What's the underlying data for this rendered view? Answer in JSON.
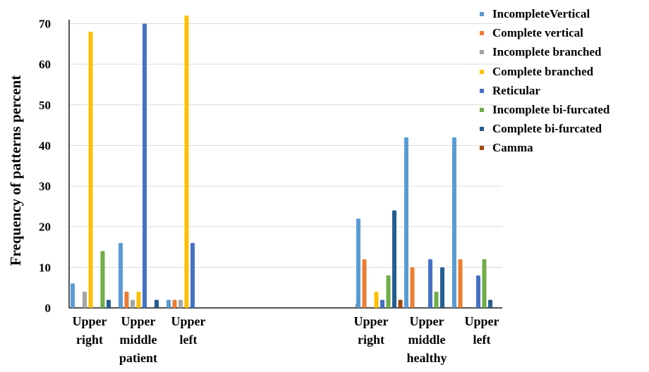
{
  "chart_data": {
    "type": "bar",
    "ylabel": "Frequency of patterns percent",
    "xlabel": "",
    "ylim": [
      0,
      72
    ],
    "yticks": [
      "0",
      "10",
      "20",
      "30",
      "40",
      "50",
      "60",
      "70"
    ],
    "grid": "horizontal",
    "legend_position": "right",
    "groups": [
      {
        "categories": [
          "Upper right",
          "Upper middle",
          "Upper left"
        ],
        "group_label": "patient",
        "series": [
          {
            "name": "IncompleteVertical",
            "color": "#5b9bd5",
            "values": [
              6,
              16,
              2
            ]
          },
          {
            "name": "Complete vertical",
            "color": "#ed7d31",
            "values": [
              0,
              4,
              2
            ]
          },
          {
            "name": "Incomplete branched",
            "color": "#a5a5a5",
            "values": [
              4,
              2,
              2
            ]
          },
          {
            "name": "Complete branched",
            "color": "#ffc000",
            "values": [
              68,
              4,
              72
            ]
          },
          {
            "name": "Reticular",
            "color": "#4472c4",
            "values": [
              0,
              70,
              16
            ]
          },
          {
            "name": "Incomplete bi-furcated",
            "color": "#70ad47",
            "values": [
              14,
              0,
              0
            ]
          },
          {
            "name": "Complete bi-furcated",
            "color": "#255e91",
            "values": [
              2,
              2,
              0
            ]
          },
          {
            "name": "Camma",
            "color": "#9e480e",
            "values": [
              0,
              0,
              0
            ]
          }
        ]
      },
      {
        "categories": [
          "Upper right",
          "Upper middle",
          "Upper left"
        ],
        "group_label": "healthy",
        "series": [
          {
            "name": "IncompleteVertical",
            "color": "#5b9bd5",
            "values": [
              22,
              42,
              42
            ]
          },
          {
            "name": "Complete vertical",
            "color": "#ed7d31",
            "values": [
              12,
              10,
              12
            ]
          },
          {
            "name": "Incomplete branched",
            "color": "#a5a5a5",
            "values": [
              0,
              0,
              0
            ]
          },
          {
            "name": "Complete branched",
            "color": "#ffc000",
            "values": [
              4,
              0,
              0
            ]
          },
          {
            "name": "Reticular",
            "color": "#4472c4",
            "values": [
              2,
              12,
              8
            ]
          },
          {
            "name": "Incomplete bi-furcated",
            "color": "#70ad47",
            "values": [
              8,
              4,
              12
            ]
          },
          {
            "name": "Complete bi-furcated",
            "color": "#255e91",
            "values": [
              24,
              10,
              2
            ]
          },
          {
            "name": "Camma",
            "color": "#9e480e",
            "values": [
              2,
              0,
              0
            ]
          }
        ]
      }
    ]
  },
  "legend": {
    "items": [
      {
        "label": "IncompleteVertical",
        "color": "#5b9bd5"
      },
      {
        "label": "Complete vertical",
        "color": "#ed7d31"
      },
      {
        "label": "Incomplete branched",
        "color": "#a5a5a5"
      },
      {
        "label": "Complete  branched",
        "color": "#ffc000"
      },
      {
        "label": "Reticular",
        "color": "#4472c4"
      },
      {
        "label": "Incomplete bi-furcated",
        "color": "#70ad47"
      },
      {
        "label": "Complete  bi-furcated",
        "color": "#255e91"
      },
      {
        "label": "Camma",
        "color": "#9e480e"
      }
    ]
  },
  "x_labels": [
    {
      "lines": [
        "Upper",
        "right"
      ]
    },
    {
      "lines": [
        "Upper",
        "middle",
        "patient"
      ]
    },
    {
      "lines": [
        "Upper",
        "left"
      ]
    },
    {
      "lines": [
        "Upper",
        "right"
      ]
    },
    {
      "lines": [
        "Upper",
        "middle",
        "healthy"
      ]
    },
    {
      "lines": [
        "Upper",
        "left"
      ]
    }
  ]
}
